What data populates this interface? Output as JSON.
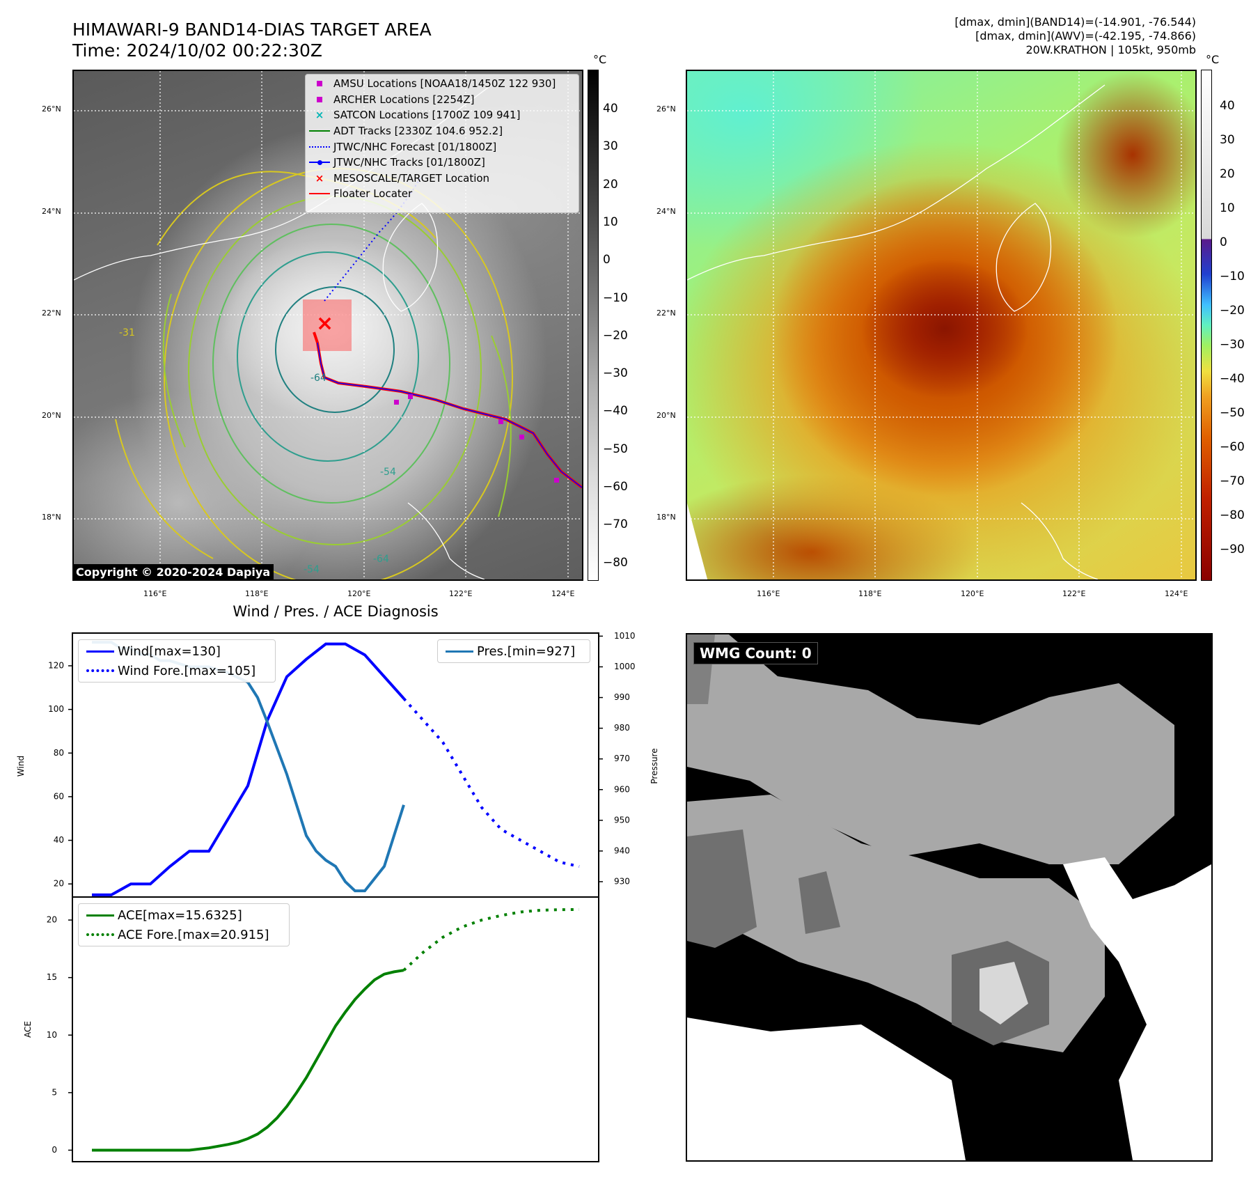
{
  "header": {
    "title_line1": "HIMAWARI-9 BAND14-DIAS TARGET AREA",
    "title_line2": "Time: 2024/10/02 00:22:30Z",
    "info_line1": "[dmax, dmin](BAND14)=(-14.901, -76.544)",
    "info_line2": "[dmax, dmin](AWV)=(-42.195, -74.866)",
    "info_line3": "20W.KRATHON | 105kt, 950mb"
  },
  "map_axes": {
    "lat_labels": [
      "26°N",
      "24°N",
      "22°N",
      "20°N",
      "18°N"
    ],
    "lon_labels": [
      "116°E",
      "118°E",
      "120°E",
      "122°E",
      "124°E"
    ],
    "lat_range": [
      16.8,
      26.8
    ],
    "lon_range": [
      114.3,
      124.3
    ]
  },
  "colorbar_ir": {
    "unit": "°C",
    "ticks": [
      "40",
      "30",
      "20",
      "10",
      "0",
      "−10",
      "−20",
      "−30",
      "−40",
      "−50",
      "−60",
      "−70",
      "−80"
    ]
  },
  "colorbar_awv": {
    "unit": "°C",
    "ticks": [
      "40",
      "30",
      "20",
      "10",
      "0",
      "−10",
      "−20",
      "−30",
      "−40",
      "−50",
      "−60",
      "−70",
      "−80",
      "−90"
    ]
  },
  "legend": {
    "items": [
      {
        "label": "AMSU Locations [NOAA18/1450Z 122 930]",
        "marker": "square",
        "color": "#cc00cc"
      },
      {
        "label": "ARCHER Locations [2254Z]",
        "marker": "square",
        "color": "#cc00cc"
      },
      {
        "label": "SATCON Locations [1700Z 109 941]",
        "marker": "x",
        "color": "#00b5b5"
      },
      {
        "label": "ADT Tracks [2330Z 104.6 952.2]",
        "marker": "line",
        "color": "#008000"
      },
      {
        "label": "JTWC/NHC Forecast [01/1800Z]",
        "marker": "dotted",
        "color": "#0000ff"
      },
      {
        "label": "JTWC/NHC Tracks [01/1800Z]",
        "marker": "line-dot",
        "color": "#0000ff"
      },
      {
        "label": "MESOSCALE/TARGET Location",
        "marker": "x",
        "color": "#ff0000"
      },
      {
        "label": "Floater Locater",
        "marker": "line",
        "color": "#ff0000"
      }
    ]
  },
  "contour_labels": [
    "-64",
    "-54",
    "-31",
    "-64",
    "-54"
  ],
  "copyright": "Copyright © 2020-2024 Dapiya",
  "diagnosis": {
    "title": "Wind / Pres. / ACE Diagnosis",
    "wind_ylabel": "Wind",
    "pres_ylabel": "Pressure",
    "ace_ylabel": "ACE",
    "legend_wind": "Wind[max=130]",
    "legend_wind_fore": "Wind Fore.[max=105]",
    "legend_pres": "Pres.[min=927]",
    "legend_ace": "ACE[max=15.6325]",
    "legend_ace_fore": "ACE Fore.[max=20.915]"
  },
  "wmg": {
    "label": "WMG Count: 0"
  },
  "chart_data": [
    {
      "type": "line",
      "panel": "wind-pressure",
      "xlim": [
        0,
        27
      ],
      "wind_ylim": [
        14,
        135
      ],
      "wind_ticks": [
        20,
        40,
        60,
        80,
        100,
        120
      ],
      "pres_ylim": [
        925,
        1011
      ],
      "pres_ticks": [
        930,
        940,
        950,
        960,
        970,
        980,
        990,
        1000,
        1010
      ],
      "series": [
        {
          "name": "Wind[max=130]",
          "axis": "left",
          "color": "#0000ff",
          "style": "solid",
          "x": [
            1,
            2,
            3,
            4,
            5,
            6,
            7,
            8,
            9,
            10,
            11,
            12,
            13,
            14,
            15,
            16,
            17
          ],
          "values": [
            15,
            15,
            20,
            20,
            28,
            35,
            35,
            50,
            65,
            95,
            115,
            123,
            130,
            130,
            125,
            115,
            105
          ]
        },
        {
          "name": "Wind Fore.[max=105]",
          "axis": "left",
          "color": "#0000ff",
          "style": "dotted",
          "x": [
            17,
            18,
            19,
            20,
            21,
            22,
            23,
            24,
            25,
            26
          ],
          "values": [
            105,
            95,
            85,
            70,
            55,
            45,
            40,
            35,
            30,
            28
          ]
        },
        {
          "name": "Pres.[min=927]",
          "axis": "right",
          "color": "#1f77b4",
          "style": "solid",
          "x": [
            1,
            1.5,
            2,
            2.5,
            3,
            3.5,
            4,
            4.5,
            5,
            6,
            7,
            8,
            9,
            9.5,
            10,
            11,
            12,
            12.5,
            13,
            13.5,
            14,
            14.5,
            15,
            16,
            17
          ],
          "values": [
            1008,
            1008,
            1008,
            1006,
            1006,
            1004,
            1004,
            1002,
            1002,
            1000,
            1000,
            998,
            995,
            990,
            982,
            965,
            945,
            940,
            937,
            935,
            930,
            927,
            927,
            935,
            955
          ]
        }
      ]
    },
    {
      "type": "line",
      "panel": "ace",
      "xlim": [
        0,
        27
      ],
      "ylim": [
        -1,
        22
      ],
      "yticks": [
        0,
        5,
        10,
        15,
        20
      ],
      "series": [
        {
          "name": "ACE[max=15.6325]",
          "color": "#008000",
          "style": "solid",
          "x": [
            1,
            2,
            3,
            4,
            5,
            6,
            7,
            8,
            8.5,
            9,
            9.5,
            10,
            10.5,
            11,
            11.5,
            12,
            12.5,
            13,
            13.5,
            14,
            14.5,
            15,
            15.5,
            16,
            16.5,
            17
          ],
          "values": [
            0,
            0,
            0,
            0,
            0,
            0,
            0.2,
            0.5,
            0.7,
            1.0,
            1.4,
            2.0,
            2.8,
            3.8,
            5.0,
            6.3,
            7.8,
            9.3,
            10.8,
            12.0,
            13.1,
            14.0,
            14.8,
            15.3,
            15.5,
            15.6325
          ]
        },
        {
          "name": "ACE Fore.[max=20.915]",
          "color": "#008000",
          "style": "dotted",
          "x": [
            17,
            18,
            19,
            20,
            21,
            22,
            23,
            24,
            25,
            26
          ],
          "values": [
            15.6325,
            17.2,
            18.5,
            19.4,
            20.0,
            20.4,
            20.7,
            20.85,
            20.9,
            20.915
          ]
        }
      ]
    }
  ]
}
